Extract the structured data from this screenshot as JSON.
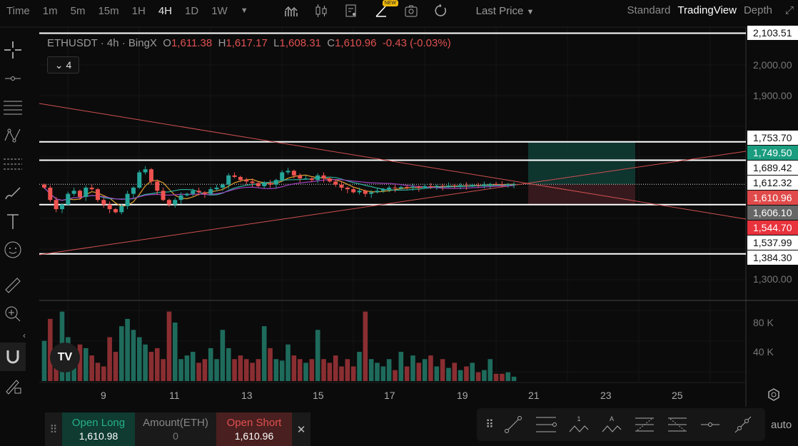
{
  "toolbar": {
    "timeframes": [
      "Time",
      "1m",
      "5m",
      "15m",
      "1H",
      "4H",
      "1D",
      "1W"
    ],
    "active": "4H",
    "new_badge": "NEW",
    "price_type": "Last Price",
    "views": [
      "Standard",
      "TradingView",
      "Depth"
    ],
    "active_view": "TradingView"
  },
  "legend": {
    "symbol": "ETHUSDT · 4h · BingX",
    "o_label": "O",
    "o": "1,611.38",
    "h_label": "H",
    "h": "1,617.17",
    "l_label": "L",
    "l": "1,608.31",
    "c_label": "C",
    "c": "1,610.96",
    "change": "-0.43 (-0.03%)",
    "indicators_count": "4"
  },
  "price_labels": [
    {
      "text": "2,103.51",
      "price": 2103.51,
      "style": "white"
    },
    {
      "text": "1,753.70",
      "price": 1763,
      "style": "white"
    },
    {
      "text": "1,749.50",
      "price": 1749.5,
      "style": "green"
    },
    {
      "text": "1,689.42",
      "price": 1689.42,
      "style": "white"
    },
    {
      "text": "1,612.32",
      "price": 1630,
      "style": "white"
    },
    {
      "text": "1,610.96",
      "price": 1610.96,
      "style": "red"
    },
    {
      "text": "1,606.10",
      "price": 1606.1,
      "style": "gray"
    },
    {
      "text": "1,544.70",
      "price": 1544.7,
      "style": "red2"
    },
    {
      "text": "1,537.99",
      "price": 1537.99,
      "style": "white"
    },
    {
      "text": "1,384.30",
      "price": 1384.3,
      "style": "white"
    }
  ],
  "axis_ticks": [
    "2,000.00",
    "1,900.00",
    "1,300.00"
  ],
  "volume_ticks": [
    "80 K",
    "40 K"
  ],
  "dates": [
    "9",
    "11",
    "13",
    "15",
    "17",
    "19",
    "21",
    "23",
    "25"
  ],
  "chart_data": {
    "type": "candlestick",
    "closes": [
      1600,
      1560,
      1530,
      1545,
      1580,
      1590,
      1570,
      1600,
      1595,
      1560,
      1545,
      1530,
      1520,
      1540,
      1580,
      1600,
      1650,
      1660,
      1620,
      1590,
      1560,
      1545,
      1560,
      1575,
      1580,
      1590,
      1585,
      1580,
      1595,
      1600,
      1610,
      1640,
      1635,
      1625,
      1620,
      1615,
      1605,
      1615,
      1610,
      1625,
      1650,
      1655,
      1640,
      1630,
      1630,
      1625,
      1640,
      1630,
      1620,
      1610,
      1600,
      1595,
      1585,
      1590,
      1580,
      1585,
      1590,
      1595,
      1600,
      1598,
      1602,
      1600,
      1603,
      1600,
      1605,
      1603,
      1606,
      1604,
      1607,
      1605,
      1608,
      1606,
      1609,
      1607,
      1610,
      1612,
      1611,
      1610,
      1611,
      1611
    ],
    "volumes_k": [
      55,
      85,
      40,
      95,
      60,
      30,
      50,
      45,
      35,
      25,
      20,
      60,
      40,
      75,
      85,
      70,
      60,
      50,
      40,
      45,
      30,
      95,
      80,
      30,
      35,
      40,
      25,
      30,
      45,
      30,
      70,
      45,
      30,
      35,
      30,
      25,
      30,
      75,
      45,
      30,
      28,
      50,
      35,
      30,
      25,
      30,
      70,
      30,
      25,
      35,
      20,
      30,
      20,
      40,
      95,
      30,
      25,
      20,
      30,
      15,
      40,
      20,
      35,
      25,
      30,
      35,
      20,
      30,
      18,
      25,
      15,
      20,
      25,
      12,
      15,
      30,
      10,
      10,
      12,
      6
    ],
    "horizontal_lines": [
      2103.51,
      1749.5,
      1689.42,
      1544.7,
      1384.3
    ],
    "last_price": 1610.96
  },
  "trade": {
    "long_label": "Open Long",
    "long_price": "1,610.98",
    "amount_label": "Amount(ETH)",
    "amount": "0",
    "short_label": "Open Short",
    "short_price": "1,610.96"
  },
  "drawing": {
    "fib_labels": [
      "1",
      "5"
    ],
    "abc_labels": [
      "A",
      "C"
    ]
  },
  "auto_label": "auto",
  "logo": "TV"
}
